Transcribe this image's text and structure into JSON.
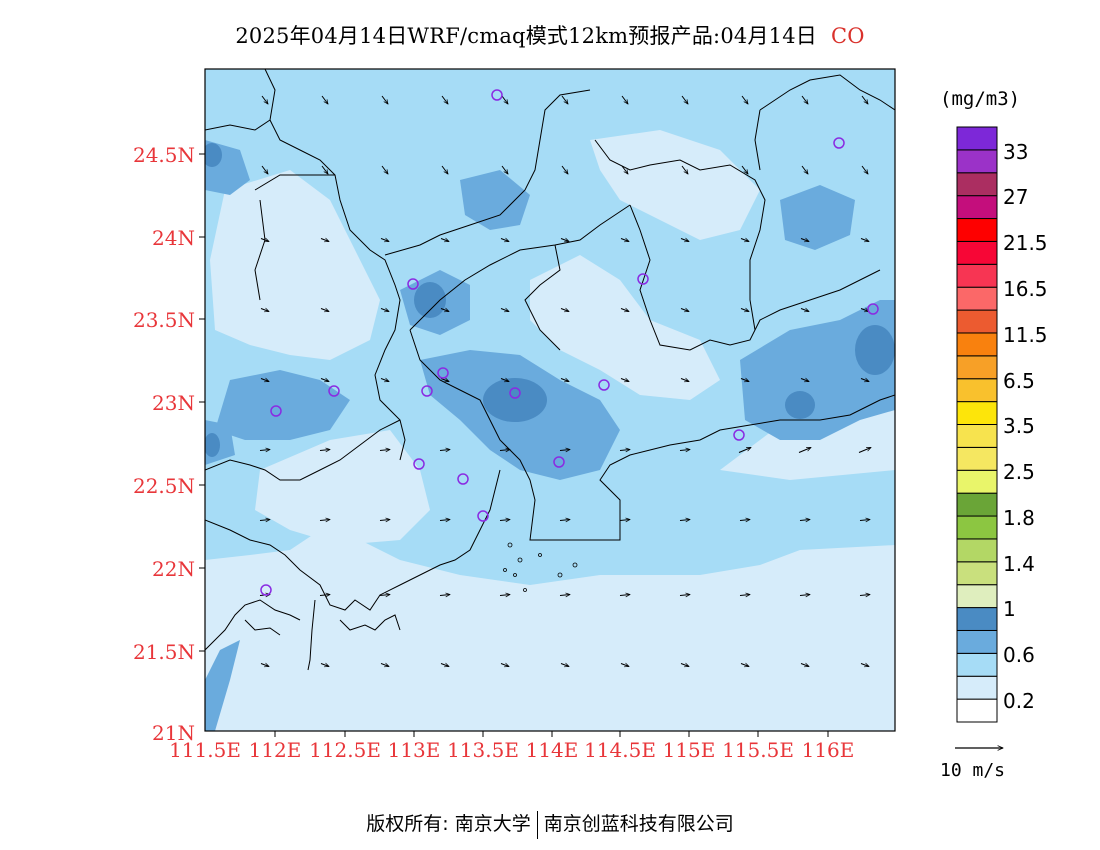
{
  "title": {
    "main": "2025年04月14日WRF/cmaq模式12km预报产品:04月14日",
    "species": "CO"
  },
  "map": {
    "lat_labels": [
      "24.5N",
      "24N",
      "23.5N",
      "23N",
      "22.5N",
      "22N",
      "21.5N",
      "21N"
    ],
    "lon_labels": [
      "111.5E",
      "112E",
      "112.5E",
      "113E",
      "113.5E",
      "114E",
      "114.5E",
      "115E",
      "115.5E",
      "116E"
    ],
    "label_color": "#e8363a",
    "stations_color": "#8a2be2"
  },
  "colorbar": {
    "unit": "(mg/m3)",
    "colors": [
      "#ffffff",
      "#d6ecfa",
      "#a6dcf6",
      "#6aabdd",
      "#4a8bc3",
      "#dfeebe",
      "#c9e07d",
      "#b3d765",
      "#8cc641",
      "#6aa537",
      "#e9f56a",
      "#f5e761",
      "#f7e34e",
      "#fde50a",
      "#f9c12d",
      "#f7a027",
      "#f9810e",
      "#ec5b30",
      "#fb6868",
      "#f73553",
      "#f70636",
      "#fe0000",
      "#c40e7c",
      "#ab2e61",
      "#9b32c8",
      "#7d28d8"
    ],
    "labels": [
      "0.2",
      "0.6",
      "1",
      "1.4",
      "1.8",
      "2.5",
      "3.5",
      "6.5",
      "11.5",
      "16.5",
      "21.5",
      "27",
      "33"
    ]
  },
  "wind_reference": "10 m/s",
  "footer": {
    "left": "版权所有: 南京大学",
    "right": "南京创蓝科技有限公司"
  }
}
